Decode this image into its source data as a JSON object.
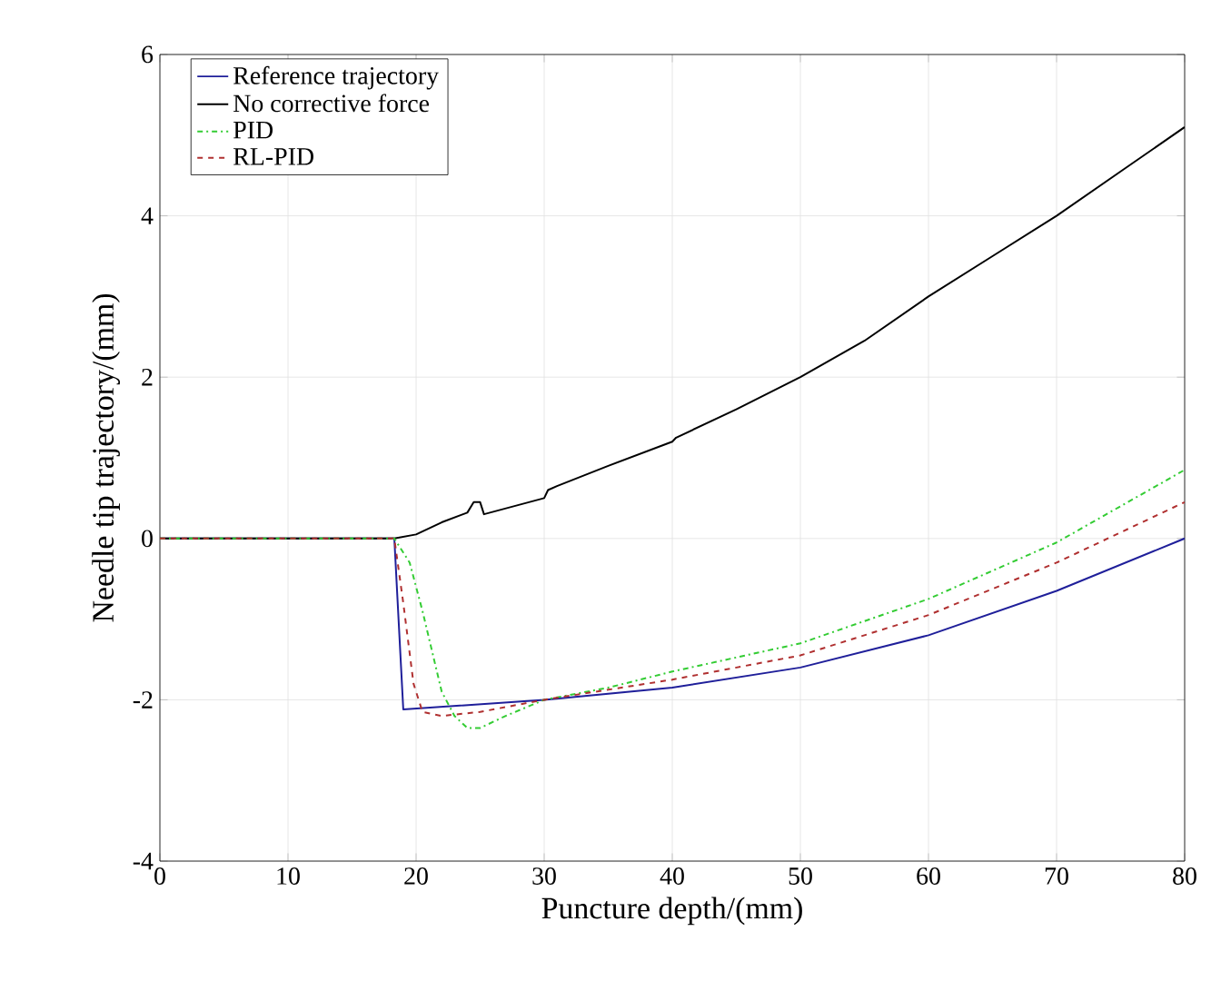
{
  "chart_data": {
    "type": "line",
    "xlabel": "Puncture depth/(mm)",
    "ylabel": "Needle tip trajectory/(mm)",
    "xlim": [
      0,
      80
    ],
    "ylim": [
      -4,
      6
    ],
    "xticks": [
      0,
      10,
      20,
      30,
      40,
      50,
      60,
      70,
      80
    ],
    "yticks": [
      -4,
      -2,
      0,
      2,
      4,
      6
    ],
    "grid": true,
    "legend": "top left",
    "series": [
      {
        "name": "Reference trajectory",
        "color": "#1f1f9a",
        "line_style": "solid",
        "x": [
          0,
          18.3,
          19,
          30,
          40,
          50,
          60,
          70,
          80
        ],
        "values": [
          0,
          0,
          -2.12,
          -2.0,
          -1.85,
          -1.6,
          -1.2,
          -0.65,
          0
        ]
      },
      {
        "name": "No corrective force",
        "color": "#000000",
        "line_style": "solid",
        "x": [
          0,
          18.3,
          20,
          22,
          24,
          24.5,
          25,
          25.3,
          30,
          30.3,
          31,
          35,
          40,
          40.3,
          45,
          50,
          55,
          60,
          65,
          70,
          75,
          80
        ],
        "values": [
          0,
          0,
          0.05,
          0.2,
          0.32,
          0.45,
          0.45,
          0.3,
          0.5,
          0.6,
          0.65,
          0.9,
          1.2,
          1.25,
          1.6,
          2.0,
          2.45,
          3.0,
          3.5,
          4.0,
          4.55,
          5.1
        ]
      },
      {
        "name": "PID",
        "color": "#33cc33",
        "line_style": "dashdotted",
        "x": [
          0,
          18.3,
          19.5,
          20.5,
          22,
          23,
          24,
          25,
          27,
          30,
          35,
          40,
          50,
          60,
          70,
          80
        ],
        "values": [
          0,
          0,
          -0.3,
          -0.9,
          -1.9,
          -2.2,
          -2.35,
          -2.35,
          -2.2,
          -2.0,
          -1.85,
          -1.65,
          -1.3,
          -0.75,
          -0.05,
          0.85
        ]
      },
      {
        "name": "RL-PID",
        "color": "#b03030",
        "line_style": "dashed",
        "x": [
          0,
          18.3,
          19,
          19.8,
          20.5,
          22,
          25,
          30,
          40,
          50,
          60,
          70,
          80
        ],
        "values": [
          0,
          0,
          -0.8,
          -1.8,
          -2.15,
          -2.2,
          -2.15,
          -2.0,
          -1.75,
          -1.45,
          -0.95,
          -0.3,
          0.45
        ]
      }
    ]
  }
}
